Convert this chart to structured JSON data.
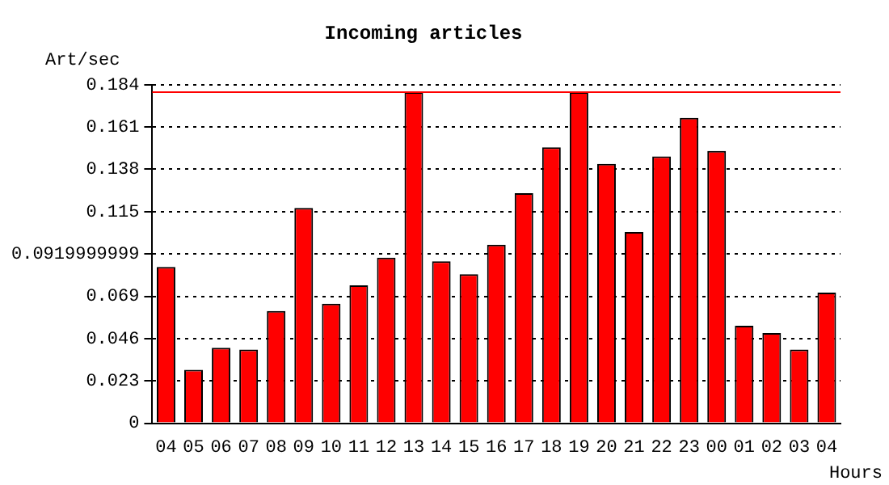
{
  "chart_data": {
    "type": "bar",
    "title": "Incoming articles",
    "ylabel": "Art/sec",
    "xlabel": "Hours",
    "categories": [
      "04",
      "05",
      "06",
      "07",
      "08",
      "09",
      "10",
      "11",
      "12",
      "13",
      "14",
      "15",
      "16",
      "17",
      "18",
      "19",
      "20",
      "21",
      "22",
      "23",
      "00",
      "01",
      "02",
      "03",
      "04"
    ],
    "values": [
      0.085,
      0.029,
      0.041,
      0.04,
      0.061,
      0.117,
      0.065,
      0.075,
      0.09,
      0.18,
      0.088,
      0.081,
      0.097,
      0.125,
      0.15,
      0.18,
      0.141,
      0.104,
      0.145,
      0.166,
      0.148,
      0.053,
      0.049,
      0.04,
      0.071
    ],
    "color": "#ff0000",
    "ylim": [
      0,
      0.184
    ],
    "yticks": [
      0,
      0.023,
      0.046,
      0.069,
      0.0919999999,
      0.115,
      0.138,
      0.161,
      0.184
    ],
    "ref_lines": [
      {
        "axis": "y",
        "value": 0.18,
        "color": "#ff0000"
      }
    ],
    "grid": "y",
    "line_style": "dotted",
    "legend": false
  }
}
